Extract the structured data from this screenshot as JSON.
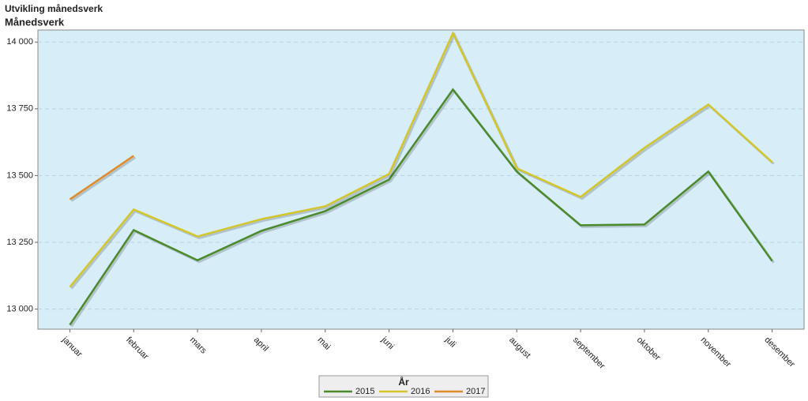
{
  "chart_data": {
    "type": "line",
    "title": "Utvikling månedsverk",
    "subtitle": "Månedsverk",
    "categories": [
      "januar",
      "februar",
      "mars",
      "april",
      "mai",
      "juni",
      "juli",
      "august",
      "september",
      "oktober",
      "november",
      "desember"
    ],
    "series": [
      {
        "name": "2015",
        "color": "#4a8a2a",
        "values": [
          12941,
          13296,
          13183,
          13293,
          13367,
          13485,
          13822,
          13515,
          13314,
          13317,
          13515,
          13180
        ]
      },
      {
        "name": "2016",
        "color": "#d4c62a",
        "values": [
          13083,
          13373,
          13272,
          13337,
          13385,
          13506,
          14033,
          13527,
          13420,
          13604,
          13766,
          13550
        ]
      },
      {
        "name": "2017",
        "color": "#e08a2a",
        "values": [
          13411,
          13574,
          null,
          null,
          null,
          null,
          null,
          null,
          null,
          null,
          null,
          null
        ]
      }
    ],
    "ylim": [
      12925,
      14045
    ],
    "yticks": [
      {
        "value": 13000,
        "label": "13 000"
      },
      {
        "value": 13250,
        "label": "13 250"
      },
      {
        "value": 13500,
        "label": "13 500"
      },
      {
        "value": 13750,
        "label": "13 750"
      },
      {
        "value": 14000,
        "label": "14 000"
      }
    ],
    "grid": true,
    "legend_title": "År",
    "legend": "bottom"
  }
}
